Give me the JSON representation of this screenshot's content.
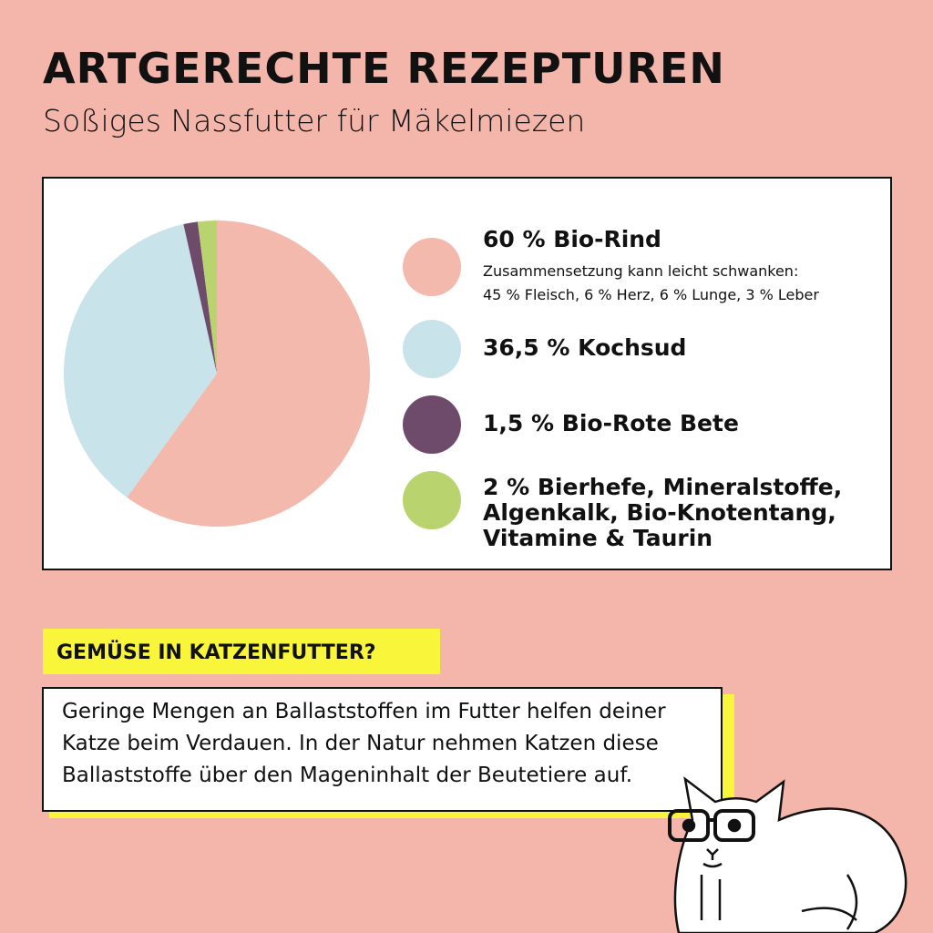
{
  "header": {
    "title": "ARTGERECHTE REZEPTUREN",
    "subtitle": "Soßiges Nassfutter für Mäkelmiezen"
  },
  "chart_data": {
    "type": "pie",
    "categories": [
      "Bio-Rind",
      "Kochsud",
      "Bio-Rote Bete",
      "Bierhefe, Mineralstoffe, Algenkalk, Bio-Knotentang, Vitamine & Taurin"
    ],
    "values": [
      60,
      36.5,
      1.5,
      2
    ],
    "value_labels": [
      "60 %",
      "36,5 %",
      "1,5 %",
      "2 %"
    ],
    "colors": [
      "#f4b9ad",
      "#c8e3ea",
      "#6e4a6b",
      "#b9d46e"
    ],
    "annotations": [
      "Zusammensetzung kann leicht schwanken:",
      "45 % Fleisch, 6 % Herz, 6 % Lunge, 3 % Leber"
    ]
  },
  "info": {
    "heading": "GEMÜSE IN KATZENFUTTER?",
    "text_lines": [
      "Geringe Mengen an Ballaststoffen im Futter helfen deiner",
      "Katze beim Verdauen. In der Natur nehmen Katzen diese",
      "Ballaststoffe über den Mageninhalt der Beutetiere auf."
    ]
  }
}
